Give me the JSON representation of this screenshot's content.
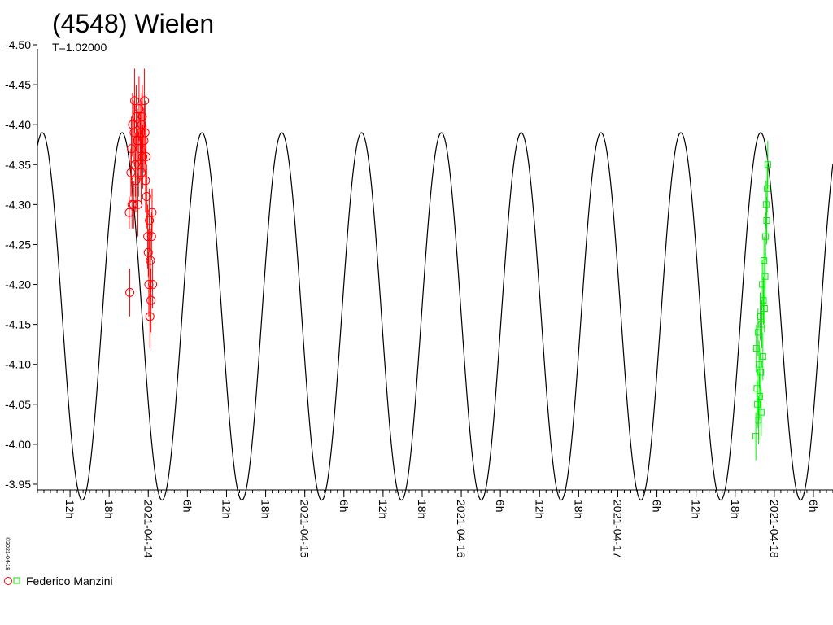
{
  "chart_data": {
    "type": "scatter",
    "title": "(4548) Wielen",
    "subtitle": "T=1.02000",
    "credit": "©2021-04-18",
    "ylim": [
      -4.5,
      -3.95
    ],
    "y_inverted": true,
    "y_ticks": [
      "-4.50",
      "-4.45",
      "-4.40",
      "-4.35",
      "-4.30",
      "-4.25",
      "-4.20",
      "-4.15",
      "-4.10",
      "-4.05",
      "-4.00",
      "-3.95"
    ],
    "y_tick_values": [
      -4.5,
      -4.45,
      -4.4,
      -4.35,
      -4.3,
      -4.25,
      -4.2,
      -4.15,
      -4.1,
      -4.05,
      -4.0,
      -3.95
    ],
    "xlim": [
      "2021-04-13T07:00",
      "2021-04-18T09:00"
    ],
    "x_ticks": [
      {
        "t": "2021-04-13T12:00",
        "label": "12h"
      },
      {
        "t": "2021-04-13T18:00",
        "label": "18h"
      },
      {
        "t": "2021-04-14T00:00",
        "label": "2021-04-14"
      },
      {
        "t": "2021-04-14T06:00",
        "label": "6h"
      },
      {
        "t": "2021-04-14T12:00",
        "label": "12h"
      },
      {
        "t": "2021-04-14T18:00",
        "label": "18h"
      },
      {
        "t": "2021-04-15T00:00",
        "label": "2021-04-15"
      },
      {
        "t": "2021-04-15T06:00",
        "label": "6h"
      },
      {
        "t": "2021-04-15T12:00",
        "label": "12h"
      },
      {
        "t": "2021-04-15T18:00",
        "label": "18h"
      },
      {
        "t": "2021-04-16T00:00",
        "label": "2021-04-16"
      },
      {
        "t": "2021-04-16T06:00",
        "label": "6h"
      },
      {
        "t": "2021-04-16T12:00",
        "label": "12h"
      },
      {
        "t": "2021-04-16T18:00",
        "label": "18h"
      },
      {
        "t": "2021-04-17T00:00",
        "label": "2021-04-17"
      },
      {
        "t": "2021-04-17T06:00",
        "label": "6h"
      },
      {
        "t": "2021-04-17T12:00",
        "label": "12h"
      },
      {
        "t": "2021-04-17T18:00",
        "label": "18h"
      },
      {
        "t": "2021-04-18T00:00",
        "label": "2021-04-18"
      },
      {
        "t": "2021-04-18T06:00",
        "label": "6h"
      }
    ],
    "model_curve": {
      "period_h": 12.24,
      "max_time": "2021-04-13T07:45",
      "y_max": -4.39,
      "y_min": -3.93
    },
    "legend": [
      {
        "label": "Federico Manzini",
        "markers": [
          "circle",
          "square"
        ],
        "colors": [
          "#ff0000",
          "#00ee00"
        ]
      }
    ],
    "series": [
      {
        "marker": "circle",
        "color": "#ff0000",
        "points": [
          {
            "x": "2021-04-13T21:05",
            "y": -4.29,
            "err": 0.02
          },
          {
            "x": "2021-04-13T21:10",
            "y": -4.19,
            "err": 0.03
          },
          {
            "x": "2021-04-13T21:20",
            "y": -4.34,
            "err": 0.03
          },
          {
            "x": "2021-04-13T21:25",
            "y": -4.37,
            "err": 0.04
          },
          {
            "x": "2021-04-13T21:30",
            "y": -4.3,
            "err": 0.03
          },
          {
            "x": "2021-04-13T21:35",
            "y": -4.4,
            "err": 0.04
          },
          {
            "x": "2021-04-13T21:45",
            "y": -4.3,
            "err": 0.03
          },
          {
            "x": "2021-04-13T21:50",
            "y": -4.39,
            "err": 0.04
          },
          {
            "x": "2021-04-13T21:55",
            "y": -4.43,
            "err": 0.04
          },
          {
            "x": "2021-04-13T22:00",
            "y": -4.35,
            "err": 0.04
          },
          {
            "x": "2021-04-13T22:05",
            "y": -4.33,
            "err": 0.04
          },
          {
            "x": "2021-04-13T22:10",
            "y": -4.41,
            "err": 0.04
          },
          {
            "x": "2021-04-13T22:20",
            "y": -4.38,
            "err": 0.04
          },
          {
            "x": "2021-04-13T22:25",
            "y": -4.3,
            "err": 0.04
          },
          {
            "x": "2021-04-13T22:30",
            "y": -4.35,
            "err": 0.04
          },
          {
            "x": "2021-04-13T22:35",
            "y": -4.42,
            "err": 0.04
          },
          {
            "x": "2021-04-13T22:45",
            "y": -4.37,
            "err": 0.04
          },
          {
            "x": "2021-04-13T22:50",
            "y": -4.39,
            "err": 0.04
          },
          {
            "x": "2021-04-13T22:55",
            "y": -4.34,
            "err": 0.04
          },
          {
            "x": "2021-04-13T23:00",
            "y": -4.4,
            "err": 0.04
          },
          {
            "x": "2021-04-13T23:05",
            "y": -4.41,
            "err": 0.04
          },
          {
            "x": "2021-04-13T23:10",
            "y": -4.36,
            "err": 0.04
          },
          {
            "x": "2021-04-13T23:20",
            "y": -4.38,
            "err": 0.04
          },
          {
            "x": "2021-04-13T23:25",
            "y": -4.43,
            "err": 0.04
          },
          {
            "x": "2021-04-13T23:30",
            "y": -4.39,
            "err": 0.04
          },
          {
            "x": "2021-04-13T23:35",
            "y": -4.33,
            "err": 0.04
          },
          {
            "x": "2021-04-13T23:40",
            "y": -4.36,
            "err": 0.04
          },
          {
            "x": "2021-04-13T23:45",
            "y": -4.31,
            "err": 0.04
          },
          {
            "x": "2021-04-13T23:55",
            "y": -4.26,
            "err": 0.04
          },
          {
            "x": "2021-04-14T00:00",
            "y": -4.24,
            "err": 0.03
          },
          {
            "x": "2021-04-14T00:05",
            "y": -4.2,
            "err": 0.04
          },
          {
            "x": "2021-04-14T00:10",
            "y": -4.28,
            "err": 0.04
          },
          {
            "x": "2021-04-14T00:15",
            "y": -4.16,
            "err": 0.04
          },
          {
            "x": "2021-04-14T00:20",
            "y": -4.23,
            "err": 0.04
          },
          {
            "x": "2021-04-14T00:25",
            "y": -4.18,
            "err": 0.04
          },
          {
            "x": "2021-04-14T00:30",
            "y": -4.26,
            "err": 0.03
          },
          {
            "x": "2021-04-14T00:35",
            "y": -4.29,
            "err": 0.03
          },
          {
            "x": "2021-04-14T00:40",
            "y": -4.2,
            "err": 0.03
          }
        ]
      },
      {
        "marker": "square",
        "color": "#00ee00",
        "points": [
          {
            "x": "2021-04-17T21:10",
            "y": -4.01,
            "err": 0.03
          },
          {
            "x": "2021-04-17T21:15",
            "y": -4.12,
            "err": 0.03
          },
          {
            "x": "2021-04-17T21:20",
            "y": -4.07,
            "err": 0.03
          },
          {
            "x": "2021-04-17T21:25",
            "y": -4.05,
            "err": 0.03
          },
          {
            "x": "2021-04-17T21:30",
            "y": -4.14,
            "err": 0.03
          },
          {
            "x": "2021-04-17T21:35",
            "y": -4.03,
            "err": 0.03
          },
          {
            "x": "2021-04-17T21:40",
            "y": -4.1,
            "err": 0.03
          },
          {
            "x": "2021-04-17T21:45",
            "y": -4.06,
            "err": 0.03
          },
          {
            "x": "2021-04-17T21:50",
            "y": -4.16,
            "err": 0.03
          },
          {
            "x": "2021-04-17T21:55",
            "y": -4.09,
            "err": 0.03
          },
          {
            "x": "2021-04-17T22:00",
            "y": -4.04,
            "err": 0.03
          },
          {
            "x": "2021-04-17T22:05",
            "y": -4.15,
            "err": 0.03
          },
          {
            "x": "2021-04-17T22:10",
            "y": -4.2,
            "err": 0.03
          },
          {
            "x": "2021-04-17T22:15",
            "y": -4.11,
            "err": 0.03
          },
          {
            "x": "2021-04-17T22:20",
            "y": -4.18,
            "err": 0.03
          },
          {
            "x": "2021-04-17T22:25",
            "y": -4.23,
            "err": 0.03
          },
          {
            "x": "2021-04-17T22:30",
            "y": -4.17,
            "err": 0.03
          },
          {
            "x": "2021-04-17T22:35",
            "y": -4.21,
            "err": 0.03
          },
          {
            "x": "2021-04-17T22:40",
            "y": -4.26,
            "err": 0.03
          },
          {
            "x": "2021-04-17T22:45",
            "y": -4.3,
            "err": 0.03
          },
          {
            "x": "2021-04-17T22:50",
            "y": -4.28,
            "err": 0.03
          },
          {
            "x": "2021-04-17T22:55",
            "y": -4.32,
            "err": 0.03
          },
          {
            "x": "2021-04-17T23:00",
            "y": -4.35,
            "err": 0.03
          }
        ]
      }
    ]
  }
}
